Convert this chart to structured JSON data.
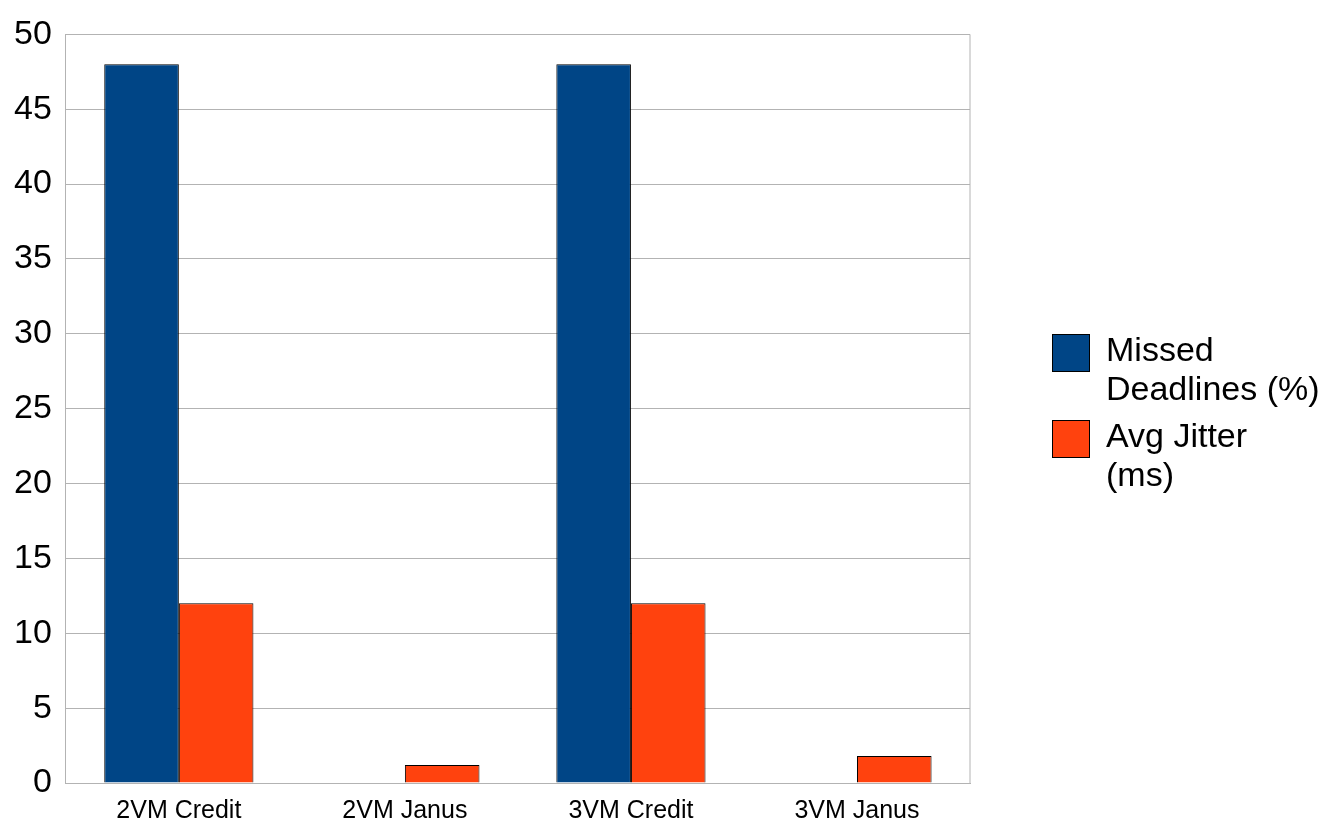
{
  "chart_data": {
    "type": "bar",
    "categories": [
      "2VM Credit",
      "2VM Janus",
      "3VM Credit",
      "3VM Janus"
    ],
    "series": [
      {
        "name": "Missed Deadlines (%)",
        "color": "#004586",
        "values": [
          48,
          0,
          48,
          0
        ]
      },
      {
        "name": "Avg Jitter (ms)",
        "color": "#ff420e",
        "values": [
          12,
          1.2,
          12,
          1.8
        ]
      }
    ],
    "ylim": [
      0,
      50
    ],
    "yticks": [
      0,
      5,
      10,
      15,
      20,
      25,
      30,
      35,
      40,
      45,
      50
    ],
    "grid": "y",
    "legend": "right"
  }
}
